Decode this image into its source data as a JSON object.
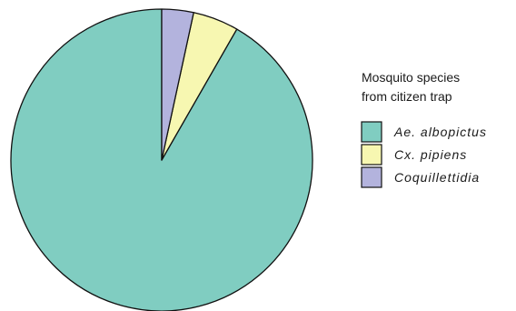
{
  "chart_data": {
    "type": "pie",
    "legend": {
      "title_line1": "Mosquito species",
      "title_line2": "from citizen trap",
      "placement": "right"
    },
    "slices": [
      {
        "label": "Ae. albopictus",
        "value": 91.7,
        "color": "#80cdc1"
      },
      {
        "label": "Cx. pipiens",
        "value": 4.9,
        "color": "#f7f7b1"
      },
      {
        "label": "Coquillettidia",
        "value": 3.4,
        "color": "#b3b3dd"
      }
    ],
    "start_angle_deg": 0,
    "direction": "counterclockwise"
  }
}
